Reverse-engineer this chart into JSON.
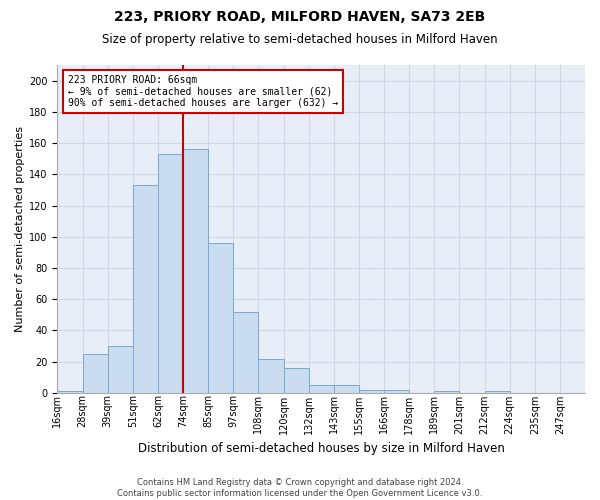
{
  "title": "223, PRIORY ROAD, MILFORD HAVEN, SA73 2EB",
  "subtitle": "Size of property relative to semi-detached houses in Milford Haven",
  "xlabel": "Distribution of semi-detached houses by size in Milford Haven",
  "ylabel": "Number of semi-detached properties",
  "footer_line1": "Contains HM Land Registry data © Crown copyright and database right 2024.",
  "footer_line2": "Contains public sector information licensed under the Open Government Licence v3.0.",
  "bar_labels": [
    "16sqm",
    "28sqm",
    "39sqm",
    "51sqm",
    "62sqm",
    "74sqm",
    "85sqm",
    "97sqm",
    "108sqm",
    "120sqm",
    "132sqm",
    "143sqm",
    "155sqm",
    "166sqm",
    "178sqm",
    "189sqm",
    "201sqm",
    "212sqm",
    "224sqm",
    "235sqm",
    "247sqm"
  ],
  "bar_values": [
    1,
    25,
    30,
    133,
    153,
    156,
    96,
    52,
    22,
    16,
    5,
    5,
    2,
    2,
    0,
    1,
    0,
    1,
    0,
    0,
    0
  ],
  "bar_color": "#c9dcf0",
  "bar_edge_color": "#7aaad0",
  "annotation_text": "223 PRIORY ROAD: 66sqm\n← 9% of semi-detached houses are smaller (62)\n90% of semi-detached houses are larger (632) →",
  "annotation_box_color": "#ffffff",
  "annotation_box_edge_color": "#cc0000",
  "vline_bar_index": 4,
  "vline_color": "#cc0000",
  "grid_color": "#d0d8e8",
  "background_color": "#e8eef8",
  "ylim": [
    0,
    210
  ],
  "yticks": [
    0,
    20,
    40,
    60,
    80,
    100,
    120,
    140,
    160,
    180,
    200
  ],
  "title_fontsize": 10,
  "subtitle_fontsize": 8.5,
  "ylabel_fontsize": 8,
  "xlabel_fontsize": 8.5,
  "tick_fontsize": 7,
  "footer_fontsize": 6,
  "annot_fontsize": 7
}
